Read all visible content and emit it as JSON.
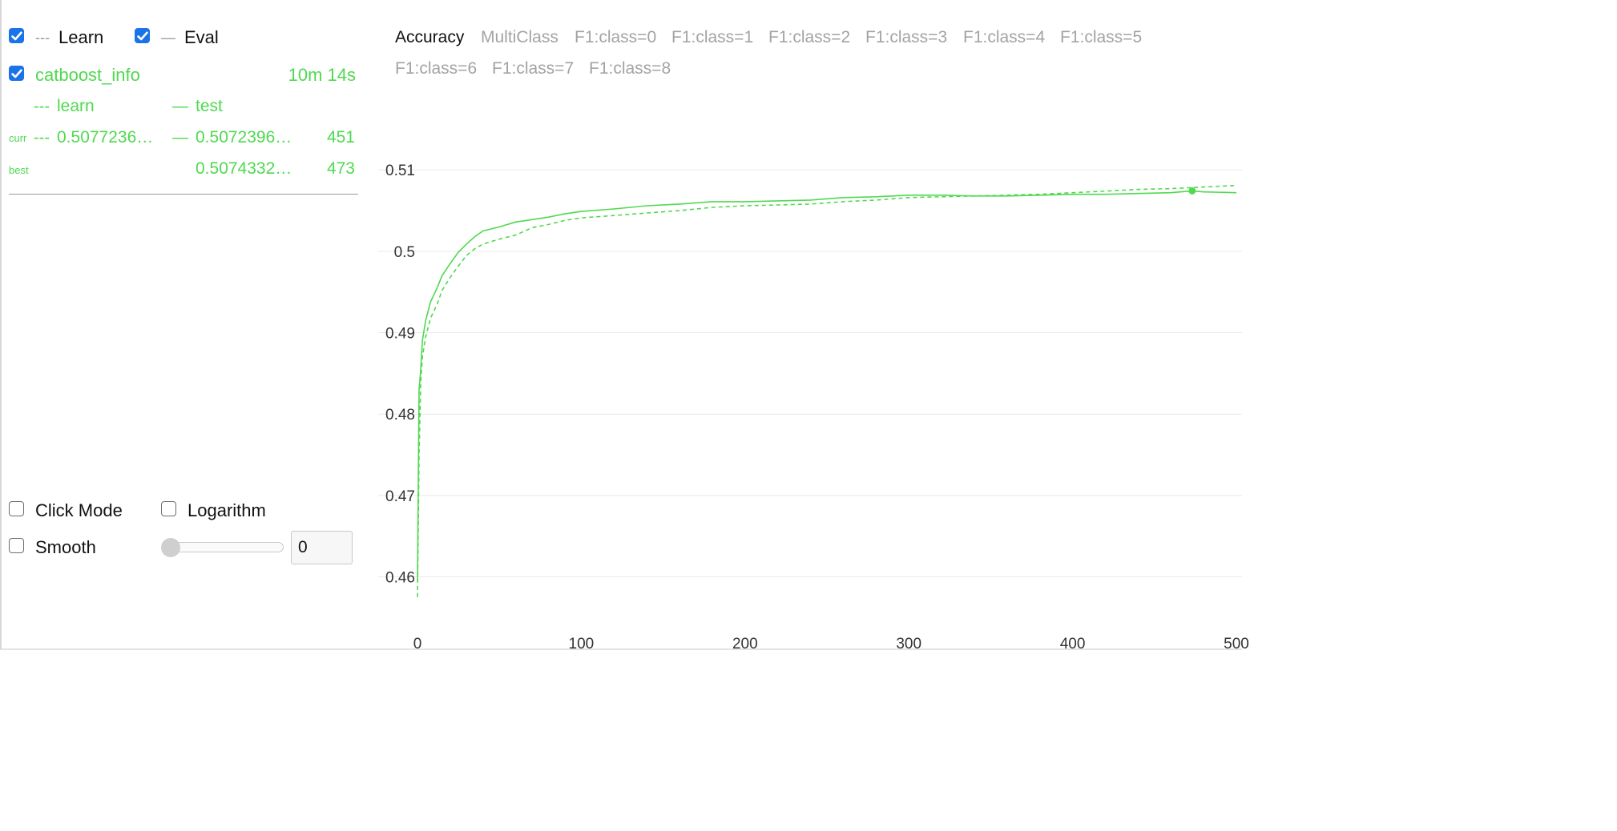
{
  "legend": {
    "learn": {
      "dash": "---",
      "label": "Learn",
      "checked": true
    },
    "eval": {
      "dash": "—",
      "label": "Eval",
      "checked": true
    }
  },
  "run": {
    "name": "catboost_info",
    "duration": "10m 14s",
    "checked": true,
    "col_learn": {
      "dash": "---",
      "label": "learn"
    },
    "col_test": {
      "dash": "—",
      "label": "test"
    },
    "curr": {
      "label": "curr",
      "learn_dash": "---",
      "learn_value": "0.5077236…",
      "test_dash": "—",
      "test_value": "0.5072396…",
      "iteration": "451"
    },
    "best": {
      "label": "best",
      "test_value": "0.5074332…",
      "iteration": "473"
    }
  },
  "controls": {
    "click_mode": {
      "label": "Click Mode",
      "checked": false
    },
    "logarithm": {
      "label": "Logarithm",
      "checked": false
    },
    "smooth": {
      "label": "Smooth",
      "checked": false
    },
    "smooth_value": "0"
  },
  "metric_tabs": [
    "Accuracy",
    "MultiClass",
    "F1:class=0",
    "F1:class=1",
    "F1:class=2",
    "F1:class=3",
    "F1:class=4",
    "F1:class=5",
    "F1:class=6",
    "F1:class=7",
    "F1:class=8"
  ],
  "active_tab": "Accuracy",
  "colors": {
    "series": "#4fd94f",
    "checkbox": "#1a73e8",
    "grid": "#e9e9e9",
    "inactive_tab": "#a3a3a3"
  },
  "chart_data": {
    "type": "line",
    "title": "",
    "xlabel": "",
    "ylabel": "",
    "x_ticks": [
      "0",
      "100",
      "200",
      "300",
      "400",
      "500"
    ],
    "y_ticks": [
      "0.46",
      "0.47",
      "0.48",
      "0.49",
      "0.5",
      "0.51"
    ],
    "xlim": [
      0,
      500
    ],
    "ylim": [
      0.457,
      0.5115
    ],
    "grid": true,
    "series": [
      {
        "name": "learn",
        "style": "dashed",
        "x": [
          0,
          1,
          2,
          3,
          5,
          8,
          12,
          15,
          20,
          25,
          30,
          35,
          40,
          50,
          60,
          70,
          80,
          90,
          100,
          120,
          140,
          160,
          180,
          200,
          220,
          240,
          260,
          280,
          300,
          320,
          340,
          360,
          380,
          400,
          420,
          440,
          460,
          480,
          500
        ],
        "y": [
          0.4575,
          0.475,
          0.484,
          0.487,
          0.4895,
          0.4918,
          0.4935,
          0.4952,
          0.4968,
          0.4982,
          0.4995,
          0.5003,
          0.5009,
          0.5015,
          0.502,
          0.5029,
          0.5033,
          0.5038,
          0.5041,
          0.5044,
          0.5047,
          0.505,
          0.5054,
          0.5056,
          0.5057,
          0.5058,
          0.5061,
          0.5063,
          0.5066,
          0.5067,
          0.5068,
          0.5069,
          0.507,
          0.5072,
          0.5074,
          0.5076,
          0.5077,
          0.5079,
          0.5081
        ]
      },
      {
        "name": "test",
        "style": "solid",
        "x": [
          0,
          1,
          2,
          3,
          5,
          8,
          12,
          15,
          20,
          25,
          30,
          35,
          40,
          50,
          60,
          70,
          80,
          90,
          100,
          120,
          140,
          160,
          180,
          200,
          220,
          240,
          260,
          280,
          300,
          320,
          340,
          360,
          380,
          400,
          420,
          440,
          460,
          473,
          480,
          500
        ],
        "y": [
          0.4595,
          0.483,
          0.4855,
          0.489,
          0.4915,
          0.4938,
          0.4955,
          0.497,
          0.4985,
          0.4999,
          0.5009,
          0.5018,
          0.5025,
          0.503,
          0.5036,
          0.5039,
          0.5042,
          0.5046,
          0.5049,
          0.5052,
          0.5056,
          0.5058,
          0.5061,
          0.5061,
          0.5062,
          0.5063,
          0.5066,
          0.5067,
          0.5069,
          0.5069,
          0.5068,
          0.5068,
          0.5069,
          0.507,
          0.507,
          0.5071,
          0.5072,
          0.50743,
          0.5073,
          0.5072
        ]
      }
    ],
    "best_point": {
      "x": 473,
      "y": 0.50743
    }
  }
}
